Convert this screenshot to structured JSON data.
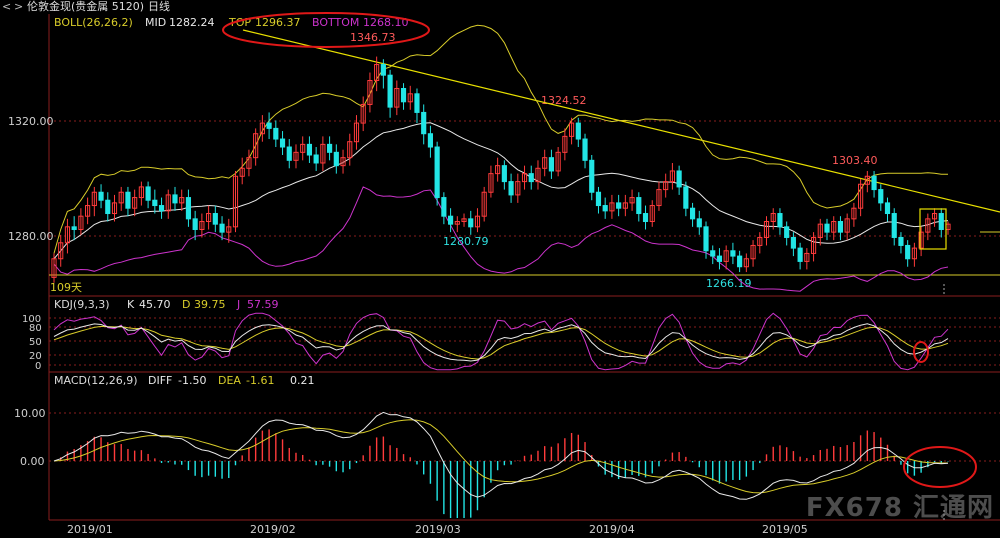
{
  "window": {
    "title": "伦敦金现(贵金属 5120)",
    "period": "日线",
    "nav_back": "<",
    "nav_forward": ">"
  },
  "indicators": {
    "boll": {
      "label": "BOLL(26,26,2)",
      "mid_label": "MID",
      "mid": "1282.24",
      "top_label": "TOP",
      "top": "1296.37",
      "bottom_label": "BOTTOM",
      "bottom": "1268.10"
    },
    "kdj": {
      "label": "KDJ(9,3,3)",
      "k_label": "K",
      "k": "45.70",
      "d_label": "D",
      "d": "39.75",
      "j_label": "J",
      "j": "57.59"
    },
    "macd": {
      "label": "MACD(12,26,9)",
      "diff_label": "DIFF",
      "diff": "-1.50",
      "dea_label": "DEA",
      "dea": "-1.61",
      "macd": "0.21"
    }
  },
  "colors": {
    "bg": "#000000",
    "up": "#ff3b3b",
    "down": "#22e5e5",
    "boll_upper": "#d8cc2a",
    "boll_mid": "#e8e8e8",
    "boll_lower": "#cc33cc",
    "grid": "#8a1e1e",
    "axis_text": "#cfcfcf",
    "trendline": "#e8e000",
    "annotation_circle": "#e01818",
    "highlight_box": "#e8e000",
    "label_red": "#ff5a5a",
    "label_cyan": "#2fe0e0"
  },
  "watermark": "FX678 汇通网",
  "chart_data": {
    "type": "candlestick",
    "x_ticks": [
      "2019/01",
      "2019/02",
      "2019/03",
      "2019/04",
      "2019/05"
    ],
    "y_ticks": [
      "1320.00",
      "1280.00"
    ],
    "kdj_ticks": [
      "100",
      "80",
      "50",
      "20",
      "0"
    ],
    "macd_ticks": [
      "10.00",
      "0.00"
    ],
    "annotations": {
      "high1": "1346.73",
      "low1": "1280.79",
      "high2": "1324.52",
      "low2": "1266.19",
      "high3": "1303.40",
      "left_marker": "109天"
    },
    "candles": [
      [
        1264,
        1271,
        1262,
        1273
      ],
      [
        1271,
        1277,
        1268,
        1280
      ],
      [
        1277,
        1283,
        1273,
        1286
      ],
      [
        1283,
        1282,
        1278,
        1287
      ],
      [
        1282,
        1287,
        1280,
        1290
      ],
      [
        1287,
        1291,
        1284,
        1294
      ],
      [
        1291,
        1296,
        1287,
        1298
      ],
      [
        1296,
        1293,
        1290,
        1299
      ],
      [
        1293,
        1288,
        1285,
        1296
      ],
      [
        1288,
        1292,
        1285,
        1295
      ],
      [
        1292,
        1296,
        1289,
        1298
      ],
      [
        1296,
        1290,
        1287,
        1298
      ],
      [
        1290,
        1294,
        1287,
        1297
      ],
      [
        1294,
        1298,
        1291,
        1300
      ],
      [
        1298,
        1293,
        1290,
        1300
      ],
      [
        1293,
        1291,
        1288,
        1297
      ],
      [
        1291,
        1289,
        1286,
        1294
      ],
      [
        1289,
        1295,
        1286,
        1297
      ],
      [
        1295,
        1292,
        1289,
        1298
      ],
      [
        1292,
        1294,
        1289,
        1297
      ],
      [
        1294,
        1286,
        1283,
        1297
      ],
      [
        1286,
        1282,
        1278,
        1289
      ],
      [
        1282,
        1285,
        1279,
        1288
      ],
      [
        1285,
        1288,
        1282,
        1291
      ],
      [
        1288,
        1284,
        1281,
        1291
      ],
      [
        1284,
        1281,
        1278,
        1287
      ],
      [
        1281,
        1283,
        1277,
        1286
      ],
      [
        1283,
        1302,
        1281,
        1304
      ],
      [
        1302,
        1305,
        1299,
        1309
      ],
      [
        1305,
        1309,
        1302,
        1312
      ],
      [
        1309,
        1318,
        1306,
        1320
      ],
      [
        1318,
        1322,
        1315,
        1325
      ],
      [
        1322,
        1320,
        1316,
        1326
      ],
      [
        1320,
        1316,
        1313,
        1323
      ],
      [
        1316,
        1313,
        1310,
        1319
      ],
      [
        1313,
        1308,
        1305,
        1316
      ],
      [
        1308,
        1311,
        1305,
        1314
      ],
      [
        1311,
        1314,
        1308,
        1317
      ],
      [
        1314,
        1310,
        1307,
        1317
      ],
      [
        1310,
        1307,
        1304,
        1313
      ],
      [
        1307,
        1314,
        1304,
        1317
      ],
      [
        1314,
        1311,
        1308,
        1317
      ],
      [
        1311,
        1306,
        1303,
        1314
      ],
      [
        1306,
        1309,
        1303,
        1312
      ],
      [
        1309,
        1315,
        1306,
        1318
      ],
      [
        1315,
        1322,
        1312,
        1325
      ],
      [
        1322,
        1329,
        1319,
        1332
      ],
      [
        1329,
        1338,
        1326,
        1341
      ],
      [
        1338,
        1344,
        1334,
        1347
      ],
      [
        1344,
        1340,
        1335,
        1346
      ],
      [
        1340,
        1328,
        1324,
        1342
      ],
      [
        1328,
        1335,
        1325,
        1338
      ],
      [
        1335,
        1330,
        1327,
        1337
      ],
      [
        1330,
        1333,
        1327,
        1336
      ],
      [
        1333,
        1326,
        1322,
        1335
      ],
      [
        1326,
        1318,
        1314,
        1329
      ],
      [
        1318,
        1313,
        1309,
        1321
      ],
      [
        1313,
        1294,
        1291,
        1315
      ],
      [
        1294,
        1287,
        1284,
        1296
      ],
      [
        1287,
        1284,
        1281,
        1290
      ],
      [
        1284,
        1285,
        1281,
        1287
      ],
      [
        1285,
        1286,
        1283,
        1288
      ],
      [
        1286,
        1283,
        1280,
        1289
      ],
      [
        1283,
        1287,
        1281,
        1290
      ],
      [
        1287,
        1296,
        1285,
        1298
      ],
      [
        1296,
        1303,
        1294,
        1306
      ],
      [
        1303,
        1306,
        1300,
        1309
      ],
      [
        1306,
        1300,
        1297,
        1308
      ],
      [
        1300,
        1295,
        1292,
        1303
      ],
      [
        1295,
        1300,
        1292,
        1303
      ],
      [
        1300,
        1303,
        1297,
        1306
      ],
      [
        1303,
        1300,
        1297,
        1306
      ],
      [
        1300,
        1305,
        1297,
        1308
      ],
      [
        1305,
        1309,
        1302,
        1312
      ],
      [
        1309,
        1304,
        1301,
        1312
      ],
      [
        1304,
        1311,
        1302,
        1313
      ],
      [
        1311,
        1317,
        1308,
        1320
      ],
      [
        1317,
        1322,
        1314,
        1324
      ],
      [
        1322,
        1316,
        1313,
        1324
      ],
      [
        1316,
        1308,
        1305,
        1318
      ],
      [
        1308,
        1296,
        1293,
        1310
      ],
      [
        1296,
        1291,
        1288,
        1298
      ],
      [
        1291,
        1289,
        1286,
        1294
      ],
      [
        1289,
        1292,
        1286,
        1295
      ],
      [
        1292,
        1290,
        1287,
        1295
      ],
      [
        1290,
        1292,
        1287,
        1295
      ],
      [
        1292,
        1294,
        1289,
        1297
      ],
      [
        1294,
        1288,
        1285,
        1296
      ],
      [
        1288,
        1285,
        1282,
        1291
      ],
      [
        1285,
        1291,
        1283,
        1293
      ],
      [
        1291,
        1297,
        1289,
        1300
      ],
      [
        1297,
        1300,
        1294,
        1303
      ],
      [
        1300,
        1304,
        1297,
        1307
      ],
      [
        1304,
        1298,
        1295,
        1306
      ],
      [
        1298,
        1290,
        1287,
        1300
      ],
      [
        1290,
        1286,
        1283,
        1292
      ],
      [
        1286,
        1283,
        1280,
        1289
      ],
      [
        1283,
        1274,
        1271,
        1285
      ],
      [
        1274,
        1272,
        1269,
        1276
      ],
      [
        1272,
        1270,
        1267,
        1275
      ],
      [
        1270,
        1274,
        1267,
        1276
      ],
      [
        1274,
        1272,
        1269,
        1277
      ],
      [
        1272,
        1268,
        1266,
        1274
      ],
      [
        1268,
        1271,
        1266,
        1273
      ],
      [
        1271,
        1276,
        1268,
        1278
      ],
      [
        1276,
        1279,
        1273,
        1281
      ],
      [
        1279,
        1285,
        1276,
        1287
      ],
      [
        1285,
        1288,
        1282,
        1290
      ],
      [
        1288,
        1283,
        1280,
        1290
      ],
      [
        1283,
        1279,
        1276,
        1285
      ],
      [
        1279,
        1275,
        1272,
        1281
      ],
      [
        1275,
        1270,
        1267,
        1277
      ],
      [
        1270,
        1273,
        1267,
        1275
      ],
      [
        1273,
        1279,
        1270,
        1281
      ],
      [
        1279,
        1284,
        1276,
        1286
      ],
      [
        1284,
        1281,
        1278,
        1286
      ],
      [
        1281,
        1285,
        1278,
        1287
      ],
      [
        1285,
        1281,
        1278,
        1287
      ],
      [
        1281,
        1286,
        1278,
        1288
      ],
      [
        1286,
        1290,
        1283,
        1292
      ],
      [
        1290,
        1299,
        1287,
        1301
      ],
      [
        1299,
        1302,
        1296,
        1304
      ],
      [
        1302,
        1297,
        1294,
        1304
      ],
      [
        1297,
        1292,
        1289,
        1299
      ],
      [
        1292,
        1288,
        1285,
        1294
      ],
      [
        1288,
        1279,
        1276,
        1290
      ],
      [
        1279,
        1276,
        1273,
        1281
      ],
      [
        1276,
        1271,
        1268,
        1278
      ],
      [
        1271,
        1275,
        1268,
        1277
      ],
      [
        1275,
        1281,
        1272,
        1283
      ],
      [
        1281,
        1286,
        1278,
        1288
      ],
      [
        1286,
        1288,
        1283,
        1290
      ],
      [
        1288,
        1282,
        1279,
        1290
      ],
      [
        1282,
        1284,
        1280,
        1285
      ]
    ],
    "y_range": [
      1257,
      1363
    ]
  }
}
